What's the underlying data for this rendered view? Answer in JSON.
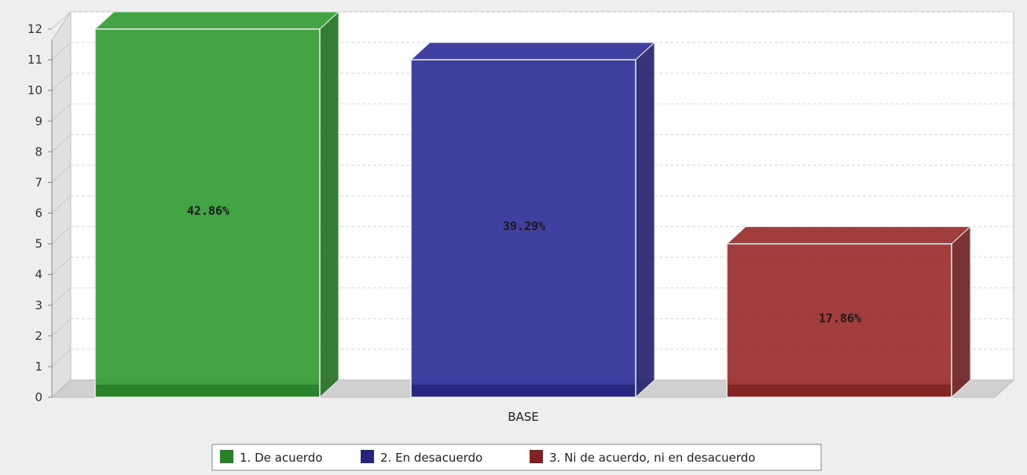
{
  "chart_data": {
    "type": "bar",
    "style": "3d",
    "categories": [
      "BASE"
    ],
    "series": [
      {
        "name": "1. De acuerdo",
        "value": 12,
        "label": "42.86%",
        "color": "#2e9a2e"
      },
      {
        "name": "2. En desacuerdo",
        "value": 11,
        "label": "39.29%",
        "color": "#2b2b97"
      },
      {
        "name": "3. Ni de acuerdo, ni en desacuerdo",
        "value": 5,
        "label": "17.86%",
        "color": "#982828"
      }
    ],
    "xlabel": "",
    "ylabel": "",
    "ylim": [
      0,
      12
    ],
    "yticks": [
      0,
      1,
      2,
      3,
      4,
      5,
      6,
      7,
      8,
      9,
      10,
      11,
      12
    ],
    "grid": true,
    "legend": "bottom"
  }
}
